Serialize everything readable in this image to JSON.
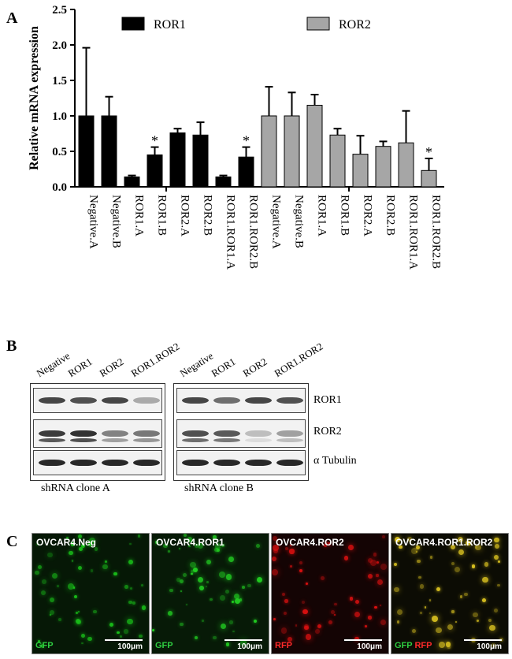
{
  "panels": {
    "a": "A",
    "b": "B",
    "c": "C"
  },
  "chart_data": {
    "type": "bar",
    "ylabel": "Relative mRNA expression",
    "ylim": [
      0,
      2.5
    ],
    "yticks": [
      "0.0",
      "0.5",
      "1.0",
      "1.5",
      "2.0",
      "2.5"
    ],
    "legend_position": "top",
    "series": [
      {
        "name": "ROR1",
        "color": "#000000",
        "categories": [
          "Negative.A",
          "Negative.B",
          "ROR1.A",
          "ROR1.B",
          "ROR2.A",
          "ROR2.B",
          "ROR1.ROR1.A",
          "ROR1.ROR2.B"
        ],
        "values": [
          1.0,
          1.0,
          0.14,
          0.45,
          0.76,
          0.73,
          0.14,
          0.42
        ],
        "errors": [
          0.96,
          0.27,
          0.02,
          0.11,
          0.06,
          0.18,
          0.02,
          0.14
        ],
        "significant": [
          false,
          false,
          false,
          true,
          false,
          false,
          false,
          true
        ]
      },
      {
        "name": "ROR2",
        "color": "#a6a6a6",
        "categories": [
          "Negative.A",
          "Negative.B",
          "ROR1.A",
          "ROR1.B",
          "ROR2.A",
          "ROR2.B",
          "ROR1.ROR1.A",
          "ROR1.ROR2.B"
        ],
        "values": [
          1.0,
          1.0,
          1.15,
          0.73,
          0.46,
          0.57,
          0.62,
          0.23
        ],
        "errors": [
          0.41,
          0.33,
          0.15,
          0.09,
          0.26,
          0.07,
          0.45,
          0.17
        ],
        "significant": [
          false,
          false,
          false,
          false,
          false,
          false,
          false,
          true
        ]
      }
    ],
    "significance_marker": "*"
  },
  "western": {
    "lanes": [
      "Negative",
      "ROR1",
      "ROR2",
      "ROR1.ROR2"
    ],
    "rows": [
      "ROR1",
      "ROR2",
      "α Tubulin"
    ],
    "captions": [
      "shRNA clone A",
      "shRNA clone B"
    ],
    "band_intensity": {
      "clone_a": [
        [
          0.8,
          0.75,
          0.8,
          0.3
        ],
        [
          0.85,
          0.9,
          0.5,
          0.55
        ],
        [
          0.95,
          0.95,
          0.95,
          0.95
        ]
      ],
      "clone_b": [
        [
          0.8,
          0.6,
          0.8,
          0.75
        ],
        [
          0.75,
          0.7,
          0.2,
          0.35
        ],
        [
          0.95,
          0.95,
          0.95,
          0.95
        ]
      ]
    }
  },
  "micrographs": [
    {
      "title": "OVCAR4.Neg",
      "channels": [
        {
          "label": "GFP",
          "color": "#2ecc40"
        }
      ],
      "scale": "100μm",
      "tint": "#19c019",
      "bg": "#061806"
    },
    {
      "title": "OVCAR4.ROR1",
      "channels": [
        {
          "label": "GFP",
          "color": "#2ecc40"
        }
      ],
      "scale": "100μm",
      "tint": "#22d022",
      "bg": "#071a07"
    },
    {
      "title": "OVCAR4.ROR2",
      "channels": [
        {
          "label": "RFP",
          "color": "#ff2a2a"
        }
      ],
      "scale": "100μm",
      "tint": "#e01010",
      "bg": "#140404"
    },
    {
      "title": "OVCAR4.ROR1.ROR2",
      "channels": [
        {
          "label": "GFP",
          "color": "#2ecc40"
        },
        {
          "label": "RFP",
          "color": "#ff2a2a"
        }
      ],
      "scale": "100μm",
      "tint": "#d8c020",
      "bg": "#0c0c04"
    }
  ]
}
